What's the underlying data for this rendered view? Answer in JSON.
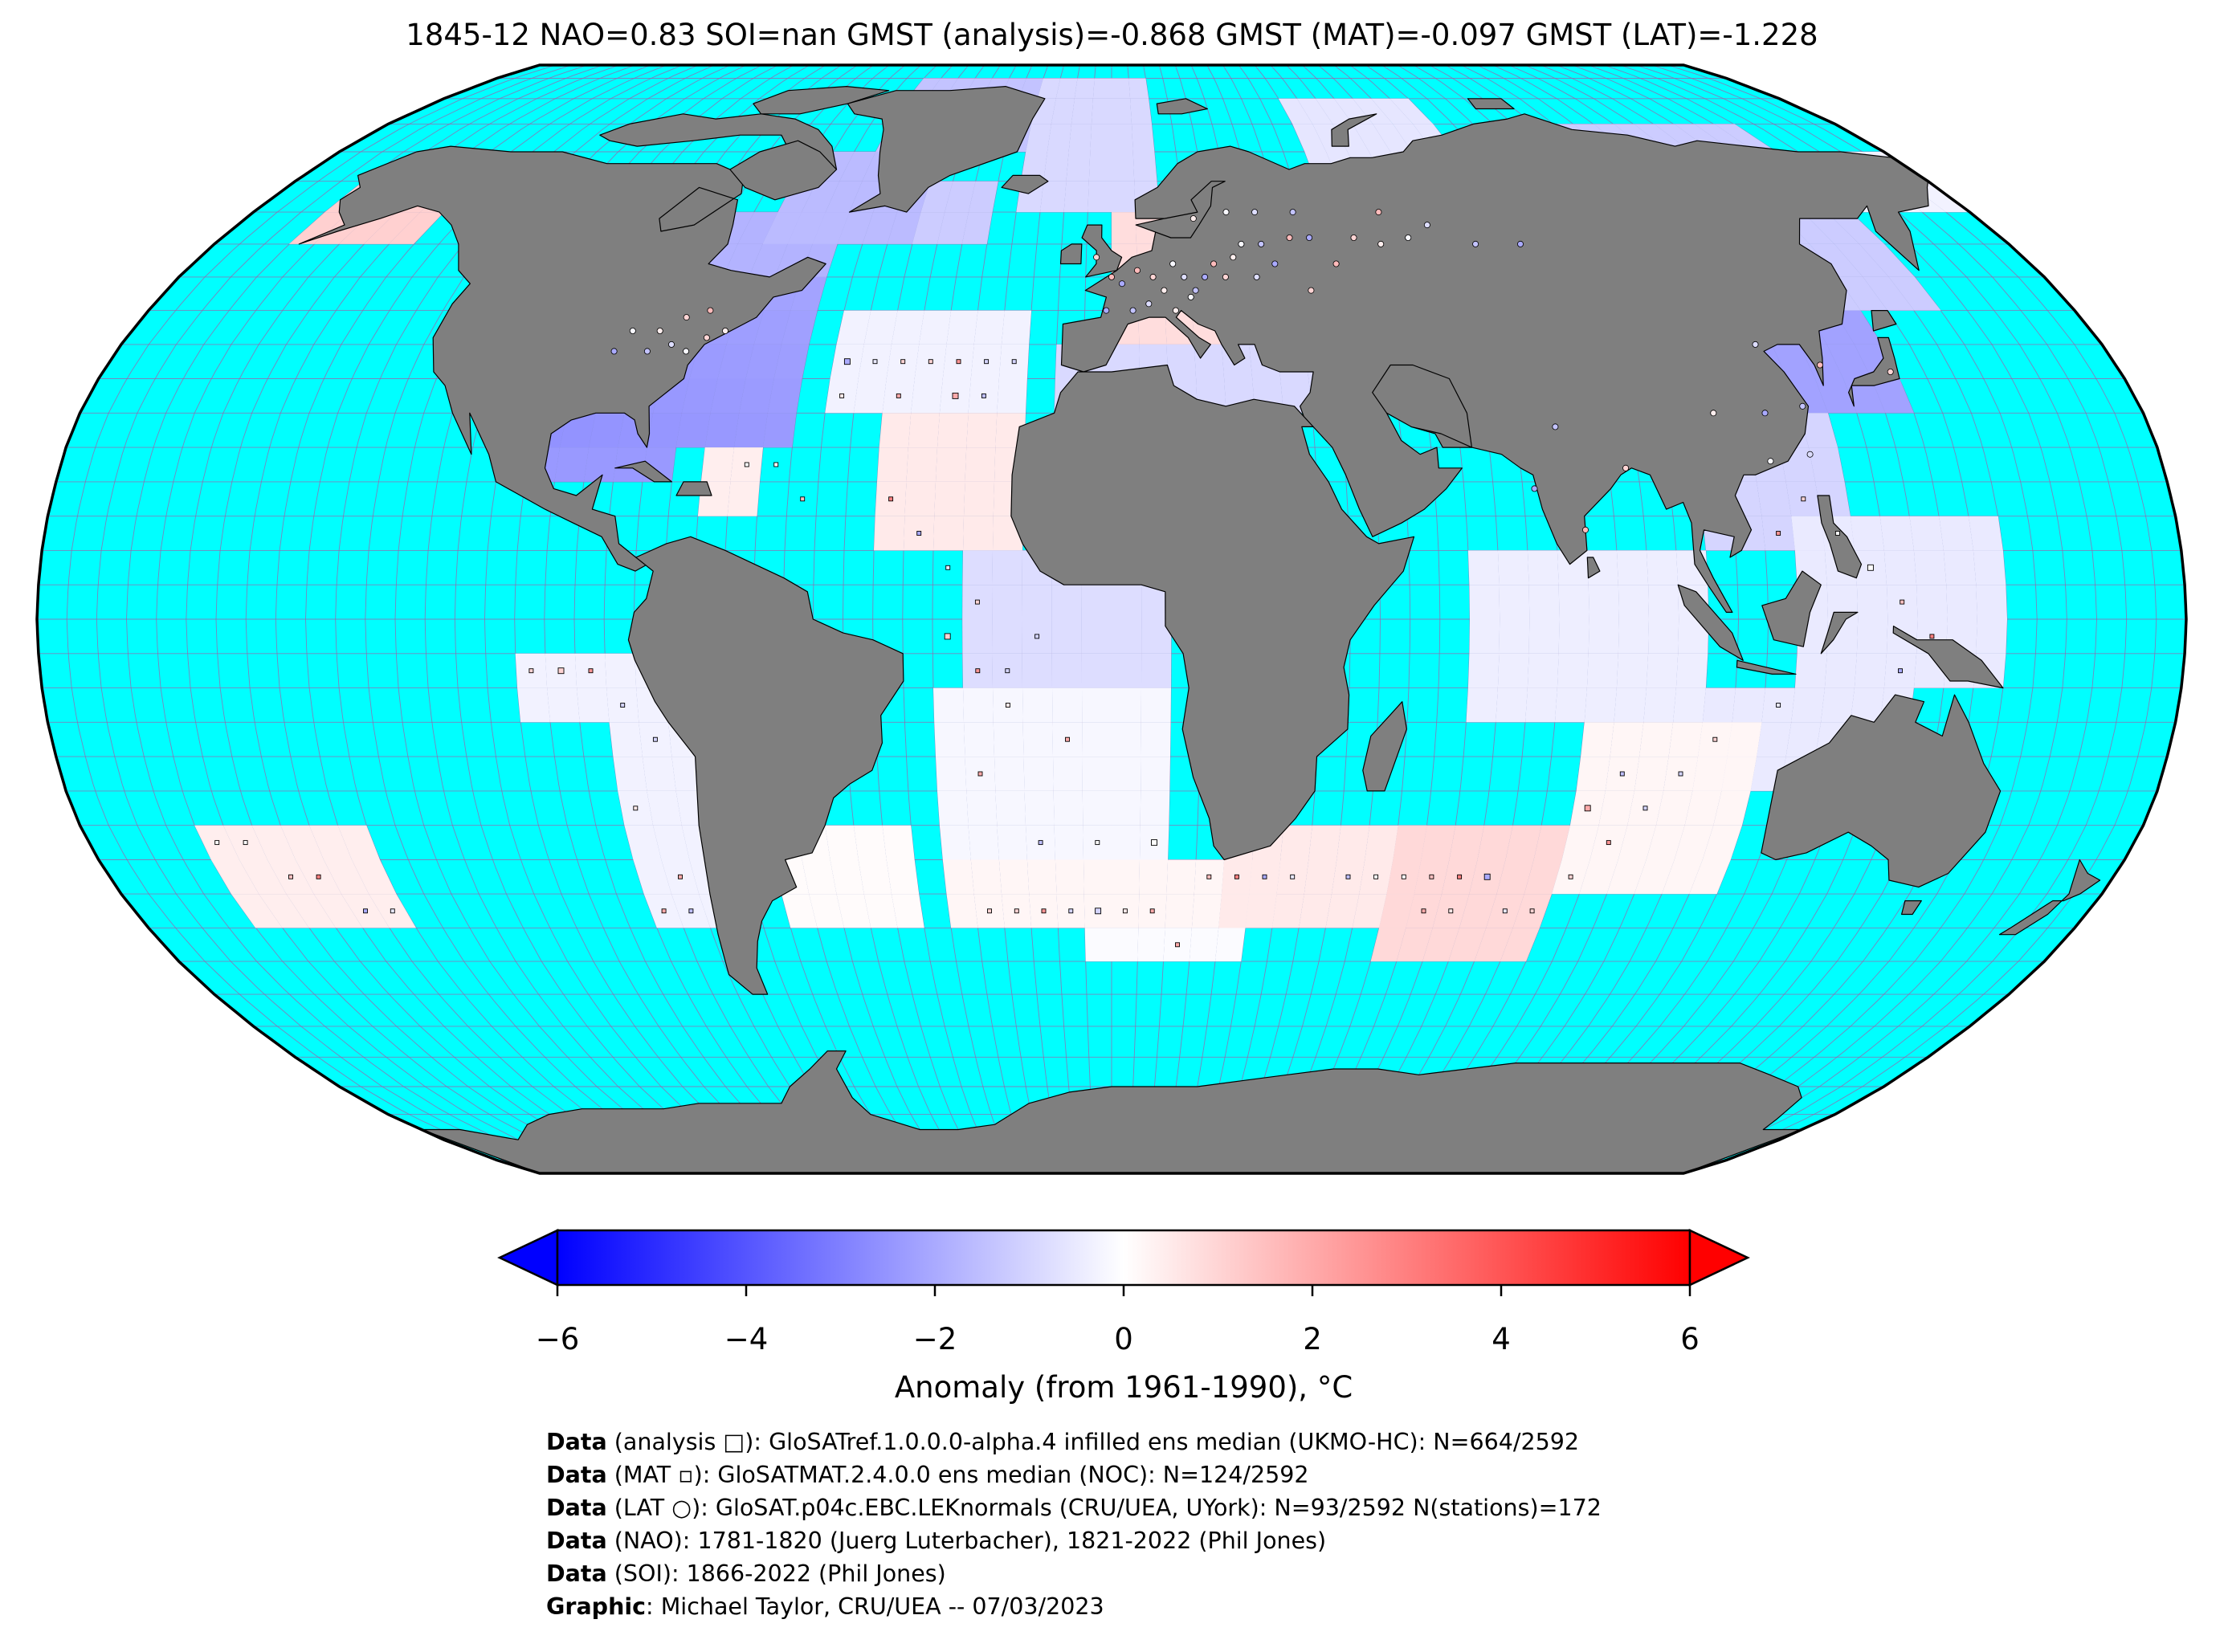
{
  "title": "1845-12 NAO=0.83 SOI=nan GMST (analysis)=-0.868 GMST (MAT)=-0.097 GMST (LAT)=-1.228",
  "map": {
    "projection": "Robinson",
    "ocean_color": "#00ffff",
    "land_color": "#7f7f7f",
    "grid_color": "#9f5fa8",
    "border_color": "#000000"
  },
  "colorbar": {
    "cmap": "bwr",
    "min": -6,
    "max": 6,
    "ticks": [
      "−6",
      "−4",
      "−2",
      "0",
      "2",
      "4",
      "6"
    ],
    "extend": "both",
    "label": "Anomaly (from 1961-1990), °C",
    "colors": {
      "low": "#0000ff",
      "mid": "#ffffff",
      "high": "#ff0000"
    }
  },
  "credits": [
    {
      "bold": "Data",
      "text": " (analysis □): GloSATref.1.0.0.0-alpha.4 infilled ens median (UKMO-HC): N=664/2592"
    },
    {
      "bold": "Data",
      "text": " (MAT ▫): GloSATMAT.2.4.0.0 ens median (NOC): N=124/2592"
    },
    {
      "bold": "Data",
      "text": " (LAT ○): GloSAT.p04c.EBC.LEKnormals (CRU/UEA, UYork): N=93/2592 N(stations)=172"
    },
    {
      "bold": "Data",
      "text": " (NAO): 1781-1820 (Juerg Luterbacher), 1821-2022 (Phil Jones)"
    },
    {
      "bold": "Data",
      "text": " (SOI): 1866-2022 (Phil Jones)"
    },
    {
      "bold": "Graphic",
      "text": ": Michael Taylor, CRU/UEA -- 07/03/2023"
    }
  ]
}
